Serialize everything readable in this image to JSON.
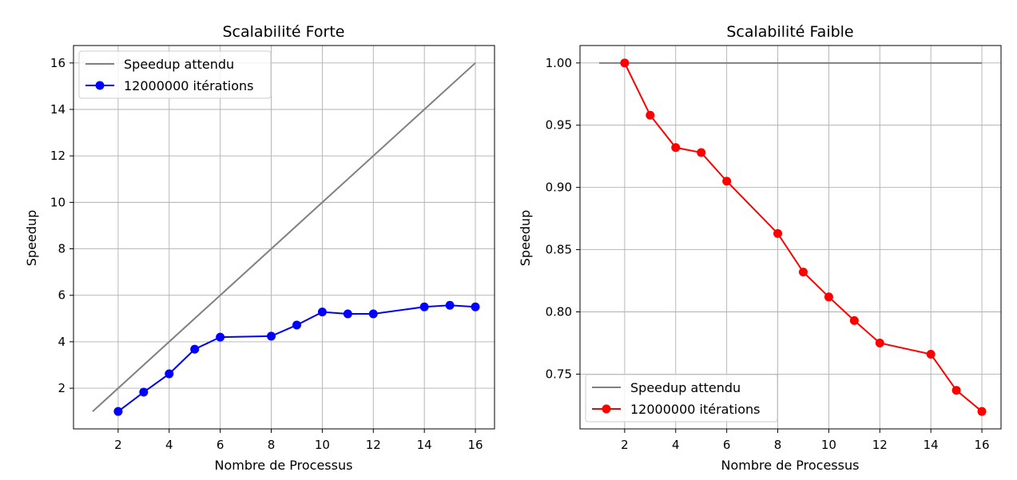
{
  "chart_data": [
    {
      "type": "line",
      "title": "Scalabilité Forte",
      "xlabel": "Nombre de Processus",
      "ylabel": "Speedup",
      "xlim": [
        0.25,
        16.75
      ],
      "ylim": [
        0.25,
        16.75
      ],
      "xticks": [
        "2",
        "4",
        "6",
        "8",
        "10",
        "12",
        "14",
        "16"
      ],
      "yticks": [
        "2",
        "4",
        "6",
        "8",
        "10",
        "12",
        "14",
        "16"
      ],
      "grid": true,
      "legend_position": "top-left",
      "series": [
        {
          "name": "Speedup attendu",
          "color": "#808080",
          "marker": "none",
          "x": [
            1,
            16
          ],
          "y": [
            1,
            16
          ]
        },
        {
          "name": "12000000 itérations",
          "color": "#0000ff",
          "marker": "circle",
          "x": [
            2,
            3,
            4,
            5,
            6,
            8,
            9,
            10,
            11,
            12,
            14,
            15,
            16
          ],
          "y": [
            1.0,
            1.83,
            2.62,
            3.68,
            4.2,
            4.24,
            4.72,
            5.28,
            5.2,
            5.2,
            5.5,
            5.57,
            5.5
          ]
        }
      ]
    },
    {
      "type": "line",
      "title": "Scalabilité Faible",
      "xlabel": "Nombre de Processus",
      "ylabel": "Speedup",
      "xlim": [
        0.25,
        16.75
      ],
      "ylim": [
        0.706,
        1.014
      ],
      "xticks": [
        "2",
        "4",
        "6",
        "8",
        "10",
        "12",
        "14",
        "16"
      ],
      "yticks": [
        "0.75",
        "0.80",
        "0.85",
        "0.90",
        "0.95",
        "1.00"
      ],
      "grid": true,
      "legend_position": "bottom-left",
      "series": [
        {
          "name": "Speedup attendu",
          "color": "#808080",
          "marker": "none",
          "x": [
            1,
            16
          ],
          "y": [
            1.0,
            1.0
          ]
        },
        {
          "name": "12000000 itérations",
          "color": "#ff0000",
          "marker": "circle",
          "x": [
            2,
            3,
            4,
            5,
            6,
            8,
            9,
            10,
            11,
            12,
            14,
            15,
            16
          ],
          "y": [
            1.0,
            0.958,
            0.932,
            0.928,
            0.905,
            0.863,
            0.832,
            0.812,
            0.793,
            0.775,
            0.766,
            0.737,
            0.72
          ]
        }
      ]
    }
  ]
}
